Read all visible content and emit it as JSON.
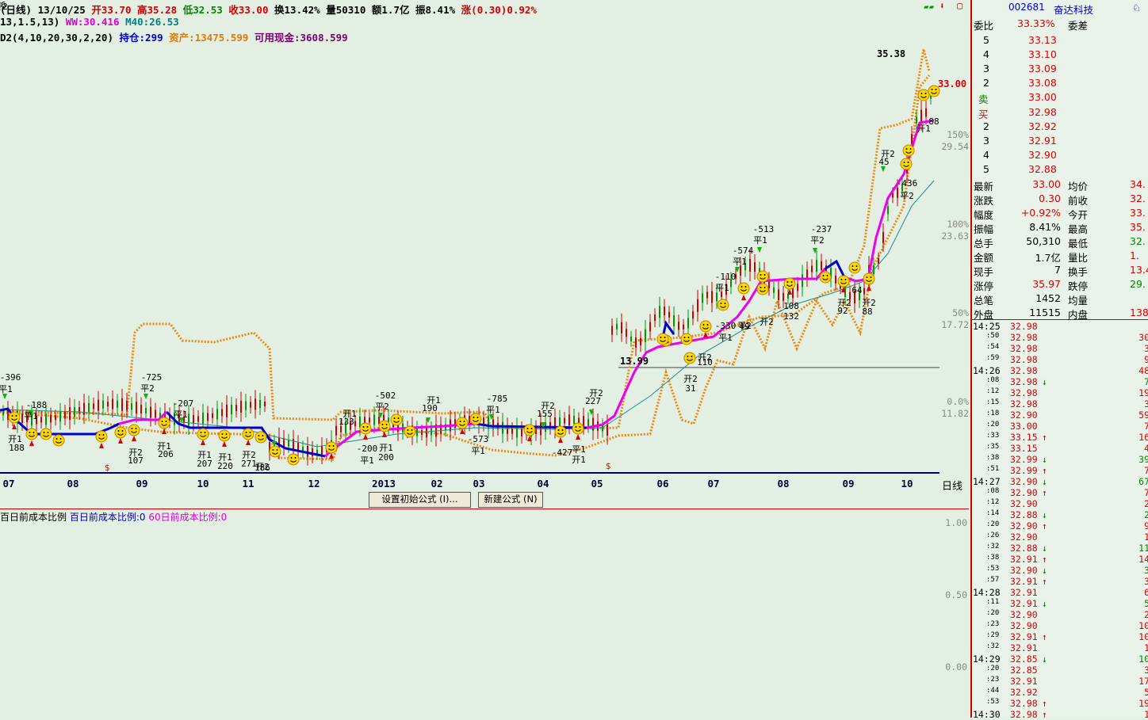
{
  "header": {
    "period": "(日线)",
    "date": "13/10/25",
    "open": "开33.70",
    "high": "高35.28",
    "low": "低32.53",
    "close": "收33.00",
    "turnover": "换13.42%",
    "volume": "量50310",
    "amount": "额1.7亿",
    "amplitude": "振8.41%",
    "change": "涨(0.30)0.92%",
    "line2_params": "13,1.5,13)",
    "line2_ww": "WW:30.416",
    "line2_m40": "M40:26.53",
    "line3_params": "D2(4,10,20,30,2,20)",
    "line3_position": "持仓:299",
    "line3_assets": "资产:13475.599",
    "line3_cash": "可用现金:3608.599"
  },
  "axis_right": {
    "pct_150": "150%",
    "val_150": "29.54",
    "pct_100": "100%",
    "val_100": "23.63",
    "pct_50": "50%",
    "val_50": "17.72",
    "pct_0": "0.0%",
    "val_0": "11.82",
    "period_label": "日线",
    "last_price": "33.00",
    "peak": "35.38",
    "base_price": "13.99"
  },
  "x_ticks": [
    "07",
    "08",
    "09",
    "10",
    "11",
    "12",
    "2013",
    "02",
    "03",
    "04",
    "05",
    "06",
    "07",
    "08",
    "09",
    "10"
  ],
  "annotations": [
    {
      "t": "-396"
    },
    {
      "t": "平1"
    },
    {
      "t": "-188"
    },
    {
      "t": "平1"
    },
    {
      "t": "开1"
    },
    {
      "t": "188"
    },
    {
      "t": "-725"
    },
    {
      "t": "平2"
    },
    {
      "t": "-207"
    },
    {
      "t": "平1"
    },
    {
      "t": "开1"
    },
    {
      "t": "206"
    },
    {
      "t": "开2"
    },
    {
      "t": "107"
    },
    {
      "t": "开1"
    },
    {
      "t": "207"
    },
    {
      "t": "开1"
    },
    {
      "t": "220"
    },
    {
      "t": "开2"
    },
    {
      "t": "271"
    },
    {
      "t": "开2"
    },
    {
      "t": "186"
    },
    {
      "t": "开1"
    },
    {
      "t": "133"
    },
    {
      "t": "-502"
    },
    {
      "t": "平2"
    },
    {
      "t": "-200"
    },
    {
      "t": "平1"
    },
    {
      "t": "开1"
    },
    {
      "t": "200"
    },
    {
      "t": "开1"
    },
    {
      "t": "190"
    },
    {
      "t": "-785"
    },
    {
      "t": "平1"
    },
    {
      "t": "-573"
    },
    {
      "t": "平1"
    },
    {
      "t": "开2"
    },
    {
      "t": "155"
    },
    {
      "t": "-427"
    },
    {
      "t": "平1"
    },
    {
      "t": "开1"
    },
    {
      "t": "开2"
    },
    {
      "t": "227"
    },
    {
      "t": "-574"
    },
    {
      "t": "平1"
    },
    {
      "t": "-110"
    },
    {
      "t": "平1"
    },
    {
      "t": "-513"
    },
    {
      "t": "平1"
    },
    {
      "t": "-237"
    },
    {
      "t": "平2"
    },
    {
      "t": "-330"
    },
    {
      "t": "平1"
    },
    {
      "t": "开2"
    },
    {
      "t": "110"
    },
    {
      "t": "开2"
    },
    {
      "t": "31"
    },
    {
      "t": "平2"
    },
    {
      "t": "49"
    },
    {
      "t": "开2"
    },
    {
      "t": "108"
    },
    {
      "t": "132"
    },
    {
      "t": "开2"
    },
    {
      "t": "92"
    },
    {
      "t": "开2"
    },
    {
      "t": "88"
    },
    {
      "t": "开2"
    },
    {
      "t": "45"
    },
    {
      "t": "-436"
    },
    {
      "t": "平2"
    },
    {
      "t": "开1"
    },
    {
      "t": "88"
    },
    {
      "t": "64"
    },
    {
      "t": "16"
    },
    {
      "t": "开2"
    }
  ],
  "buttons": {
    "set_formula": "设置初始公式 (I)...",
    "new_formula": "新建公式 (N)"
  },
  "lower": {
    "label_a": "百日前成本比例",
    "label_b": "百日前成本比例:0",
    "label_c": "60日前成本比例:0",
    "y1": "1.00",
    "y2": "0.50",
    "y3": "0.00"
  },
  "quote": {
    "code": "002681",
    "name": "奋达科技",
    "ratio_label": "委比",
    "ratio_value": "33.33%",
    "diff_label": "委差",
    "sell": [
      {
        "lv": "5",
        "p": "33.13"
      },
      {
        "lv": "4",
        "p": "33.10"
      },
      {
        "lv": "3",
        "p": "33.09"
      },
      {
        "lv": "2",
        "p": "33.08"
      },
      {
        "lv": "卖",
        "p": "33.00"
      }
    ],
    "buy": [
      {
        "lv": "买",
        "p": "32.98"
      },
      {
        "lv": "2",
        "p": "32.92"
      },
      {
        "lv": "3",
        "p": "32.91"
      },
      {
        "lv": "4",
        "p": "32.90"
      },
      {
        "lv": "5",
        "p": "32.88"
      }
    ],
    "stats": [
      {
        "l": "最新",
        "v": "33.00",
        "l2": "均价",
        "v2": "34."
      },
      {
        "l": "涨跌",
        "v": "0.30",
        "l2": "前收",
        "v2": "32."
      },
      {
        "l": "幅度",
        "v": "+0.92%",
        "l2": "今开",
        "v2": "33."
      },
      {
        "l": "振幅",
        "v": "8.41%",
        "l2": "最高",
        "v2": "35."
      },
      {
        "l": "总手",
        "v": "50,310",
        "l2": "最低",
        "v2": "32."
      },
      {
        "l": "金额",
        "v": "1.7亿",
        "l2": "量比",
        "v2": "1."
      },
      {
        "l": "现手",
        "v": "7",
        "l2": "换手",
        "v2": "13.4"
      },
      {
        "l": "涨停",
        "v": "35.97",
        "l2": "跌停",
        "v2": "29."
      },
      {
        "l": "总笔",
        "v": "1452",
        "l2": "均量",
        "v2": ""
      },
      {
        "l": "外盘",
        "v": "11515",
        "l2": "内盘",
        "v2": "138"
      }
    ],
    "ticks": [
      {
        "t": "14:25",
        "p": "32.98",
        "a": "",
        "q": ""
      },
      {
        "t": ":50",
        "p": "32.98",
        "a": "",
        "q": "30"
      },
      {
        "t": ":54",
        "p": "32.98",
        "a": "",
        "q": "3"
      },
      {
        "t": ":59",
        "p": "32.98",
        "a": "",
        "q": "9"
      },
      {
        "t": "14:26",
        "p": "32.98",
        "a": "",
        "q": "48"
      },
      {
        "t": ":08",
        "p": "32.98",
        "a": "↓",
        "q": "7"
      },
      {
        "t": ":12",
        "p": "32.98",
        "a": "",
        "q": "19"
      },
      {
        "t": ":15",
        "p": "32.98",
        "a": "",
        "q": "3"
      },
      {
        "t": ":18",
        "p": "32.90",
        "a": "",
        "q": "59"
      },
      {
        "t": ":20",
        "p": "33.00",
        "a": "",
        "q": "7"
      },
      {
        "t": ":33",
        "p": "33.15",
        "a": "↑",
        "q": "16"
      },
      {
        "t": ":35",
        "p": "33.15",
        "a": "",
        "q": "4"
      },
      {
        "t": ":38",
        "p": "32.99",
        "a": "↓",
        "q": "39"
      },
      {
        "t": ":51",
        "p": "32.99",
        "a": "↑",
        "q": "7"
      },
      {
        "t": "14:27",
        "p": "32.90",
        "a": "↓",
        "q": "67"
      },
      {
        "t": ":08",
        "p": "32.90",
        "a": "↑",
        "q": "7"
      },
      {
        "t": ":12",
        "p": "32.90",
        "a": "",
        "q": "2"
      },
      {
        "t": ":14",
        "p": "32.88",
        "a": "↓",
        "q": "2"
      },
      {
        "t": ":20",
        "p": "32.90",
        "a": "↑",
        "q": "9"
      },
      {
        "t": ":26",
        "p": "32.90",
        "a": "",
        "q": "1"
      },
      {
        "t": ":32",
        "p": "32.88",
        "a": "↓",
        "q": "11"
      },
      {
        "t": ":38",
        "p": "32.91",
        "a": "↑",
        "q": "14"
      },
      {
        "t": ":53",
        "p": "32.90",
        "a": "↓",
        "q": "3"
      },
      {
        "t": ":57",
        "p": "32.91",
        "a": "↑",
        "q": "3"
      },
      {
        "t": "14:28",
        "p": "32.91",
        "a": "",
        "q": "6"
      },
      {
        "t": ":11",
        "p": "32.91",
        "a": "↓",
        "q": "5"
      },
      {
        "t": ":20",
        "p": "32.90",
        "a": "",
        "q": "2"
      },
      {
        "t": ":23",
        "p": "32.90",
        "a": "",
        "q": "10"
      },
      {
        "t": ":29",
        "p": "32.91",
        "a": "↑",
        "q": "10"
      },
      {
        "t": ":32",
        "p": "32.91",
        "a": "",
        "q": "1"
      },
      {
        "t": "14:29",
        "p": "32.85",
        "a": "↓",
        "q": "10"
      },
      {
        "t": ":20",
        "p": "32.85",
        "a": "",
        "q": "3"
      },
      {
        "t": ":23",
        "p": "32.91",
        "a": "",
        "q": "17"
      },
      {
        "t": ":44",
        "p": "32.92",
        "a": "",
        "q": "5"
      },
      {
        "t": ":53",
        "p": "32.98",
        "a": "↑",
        "q": "19"
      },
      {
        "t": "14:30",
        "p": "32.98",
        "a": "↑",
        "q": "1"
      }
    ]
  }
}
